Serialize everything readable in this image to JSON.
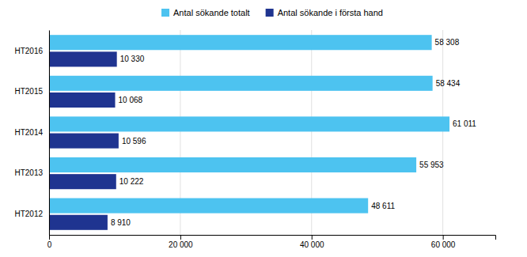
{
  "chart_data": {
    "type": "bar",
    "orientation": "horizontal",
    "categories": [
      "HT2016",
      "HT2015",
      "HT2014",
      "HT2013",
      "HT2012"
    ],
    "series": [
      {
        "name": "Antal sökande totalt",
        "color": "#4dc3f0",
        "values": [
          58308,
          58434,
          61011,
          55953,
          48611
        ],
        "value_labels": [
          "58 308",
          "58 434",
          "61 011",
          "55 953",
          "48 611"
        ]
      },
      {
        "name": "Antal sökande i första hand",
        "color": "#1f3490",
        "values": [
          10330,
          10068,
          10596,
          10222,
          8910
        ],
        "value_labels": [
          "10 330",
          "10 068",
          "10 596",
          "10 222",
          "8 910"
        ]
      }
    ],
    "xlim": [
      0,
      68000
    ],
    "xticks": [
      0,
      {
        "value": 20000,
        "label": "20 000"
      },
      {
        "value": 40000,
        "label": "40 000"
      },
      {
        "value": 60000,
        "label": "60 000"
      }
    ],
    "grid": true,
    "legend": "top",
    "data_labels": true
  }
}
